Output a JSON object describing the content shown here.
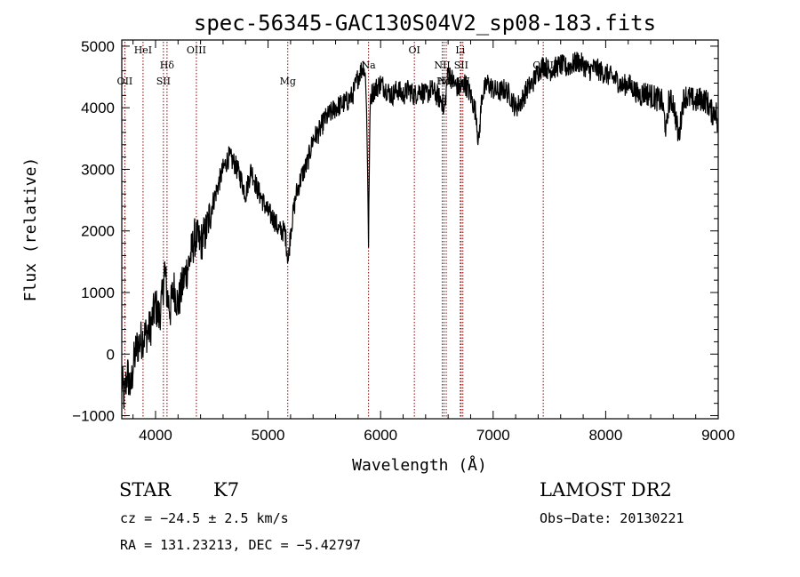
{
  "chart_data": {
    "type": "line",
    "title": "spec-56345-GAC130S04V2_sp08-183.fits",
    "xlabel": "Wavelength (Å)",
    "ylabel": "Flux (relative)",
    "xlim": [
      3700,
      9000
    ],
    "ylim": [
      -1050,
      5100
    ],
    "xticks": [
      4000,
      5000,
      6000,
      7000,
      8000,
      9000
    ],
    "yticks": [
      -1000,
      0,
      1000,
      2000,
      3000,
      4000,
      5000
    ],
    "grid": false,
    "line_color": "#000000",
    "marker_color": "#8b0000",
    "spectrum_anchors": [
      [
        3700,
        -400
      ],
      [
        3720,
        -700
      ],
      [
        3750,
        -300
      ],
      [
        3780,
        -600
      ],
      [
        3800,
        -200
      ],
      [
        3830,
        100
      ],
      [
        3860,
        200
      ],
      [
        3900,
        300
      ],
      [
        3950,
        400
      ],
      [
        4000,
        800
      ],
      [
        4030,
        600
      ],
      [
        4060,
        900
      ],
      [
        4080,
        1400
      ],
      [
        4100,
        1000
      ],
      [
        4130,
        700
      ],
      [
        4160,
        1100
      ],
      [
        4200,
        800
      ],
      [
        4250,
        1200
      ],
      [
        4300,
        1500
      ],
      [
        4350,
        1900
      ],
      [
        4400,
        1800
      ],
      [
        4450,
        2000
      ],
      [
        4500,
        2400
      ],
      [
        4550,
        2700
      ],
      [
        4600,
        3000
      ],
      [
        4650,
        3200
      ],
      [
        4700,
        3100
      ],
      [
        4750,
        2900
      ],
      [
        4800,
        2600
      ],
      [
        4850,
        3000
      ],
      [
        4900,
        2700
      ],
      [
        4950,
        2500
      ],
      [
        5000,
        2300
      ],
      [
        5050,
        2200
      ],
      [
        5100,
        2000
      ],
      [
        5150,
        2000
      ],
      [
        5180,
        1500
      ],
      [
        5200,
        2000
      ],
      [
        5250,
        2600
      ],
      [
        5300,
        2900
      ],
      [
        5350,
        3100
      ],
      [
        5400,
        3500
      ],
      [
        5450,
        3600
      ],
      [
        5500,
        3800
      ],
      [
        5550,
        3900
      ],
      [
        5600,
        4000
      ],
      [
        5650,
        4050
      ],
      [
        5700,
        4100
      ],
      [
        5750,
        4200
      ],
      [
        5800,
        4500
      ],
      [
        5850,
        4700
      ],
      [
        5870,
        4400
      ],
      [
        5885,
        3000
      ],
      [
        5893,
        1700
      ],
      [
        5900,
        3200
      ],
      [
        5910,
        4200
      ],
      [
        5950,
        4300
      ],
      [
        6000,
        4400
      ],
      [
        6050,
        4300
      ],
      [
        6100,
        4200
      ],
      [
        6150,
        4300
      ],
      [
        6200,
        4200
      ],
      [
        6250,
        4300
      ],
      [
        6300,
        4200
      ],
      [
        6350,
        4300
      ],
      [
        6400,
        4200
      ],
      [
        6450,
        4300
      ],
      [
        6500,
        4200
      ],
      [
        6550,
        4100
      ],
      [
        6563,
        3900
      ],
      [
        6580,
        4200
      ],
      [
        6600,
        4600
      ],
      [
        6650,
        4400
      ],
      [
        6700,
        4300
      ],
      [
        6750,
        4400
      ],
      [
        6800,
        4200
      ],
      [
        6850,
        3900
      ],
      [
        6870,
        3400
      ],
      [
        6900,
        4200
      ],
      [
        6950,
        4400
      ],
      [
        7000,
        4300
      ],
      [
        7050,
        4250
      ],
      [
        7100,
        4300
      ],
      [
        7150,
        4200
      ],
      [
        7200,
        4000
      ],
      [
        7250,
        4100
      ],
      [
        7300,
        4300
      ],
      [
        7350,
        4400
      ],
      [
        7400,
        4600
      ],
      [
        7450,
        4700
      ],
      [
        7500,
        4600
      ],
      [
        7550,
        4650
      ],
      [
        7600,
        4700
      ],
      [
        7650,
        4650
      ],
      [
        7700,
        4700
      ],
      [
        7750,
        4750
      ],
      [
        7800,
        4700
      ],
      [
        7850,
        4600
      ],
      [
        7900,
        4650
      ],
      [
        7950,
        4600
      ],
      [
        8000,
        4550
      ],
      [
        8050,
        4500
      ],
      [
        8100,
        4450
      ],
      [
        8150,
        4350
      ],
      [
        8200,
        4400
      ],
      [
        8250,
        4300
      ],
      [
        8300,
        4200
      ],
      [
        8350,
        4250
      ],
      [
        8400,
        4200
      ],
      [
        8450,
        4150
      ],
      [
        8500,
        4100
      ],
      [
        8540,
        3600
      ],
      [
        8560,
        4100
      ],
      [
        8600,
        4100
      ],
      [
        8650,
        3500
      ],
      [
        8680,
        4000
      ],
      [
        8700,
        4200
      ],
      [
        8750,
        4150
      ],
      [
        8800,
        4100
      ],
      [
        8850,
        4150
      ],
      [
        8900,
        4100
      ],
      [
        8950,
        3900
      ],
      [
        8980,
        4000
      ],
      [
        9000,
        3500
      ]
    ],
    "spectrum_noise": 260,
    "line_markers": [
      {
        "label": "OII",
        "x": 3727,
        "row": 3
      },
      {
        "label": "HeI",
        "x": 3889,
        "row": 1
      },
      {
        "label": "SII",
        "x": 4070,
        "row": 3
      },
      {
        "label": "Hδ",
        "x": 4102,
        "row": 2
      },
      {
        "label": "OIII",
        "x": 4363,
        "row": 1
      },
      {
        "label": "Mg",
        "x": 5175,
        "row": 3
      },
      {
        "label": "Na",
        "x": 5893,
        "row": 2
      },
      {
        "label": "OI",
        "x": 6300,
        "row": 1
      },
      {
        "label": "NII",
        "x": 6548,
        "row": 2
      },
      {
        "label": "Hα",
        "x": 6563,
        "row": 3
      },
      {
        "label": "NII",
        "x": 6583,
        "row": 3
      },
      {
        "label": "Li",
        "x": 6708,
        "row": 1
      },
      {
        "label": "SII",
        "x": 6716,
        "row": 2
      },
      {
        "label": "SII",
        "x": 6731,
        "row": 3
      },
      {
        "label": "CaII",
        "x": 7445,
        "row": 2
      }
    ]
  },
  "info": {
    "object_class": "STAR",
    "subclass": "K7",
    "survey": "LAMOST DR2",
    "redshift": "cz = −24.5 ± 2.5 km/s",
    "obs_date": "Obs−Date: 20130221",
    "coords": "RA = 131.23213, DEC =  −5.42797"
  }
}
